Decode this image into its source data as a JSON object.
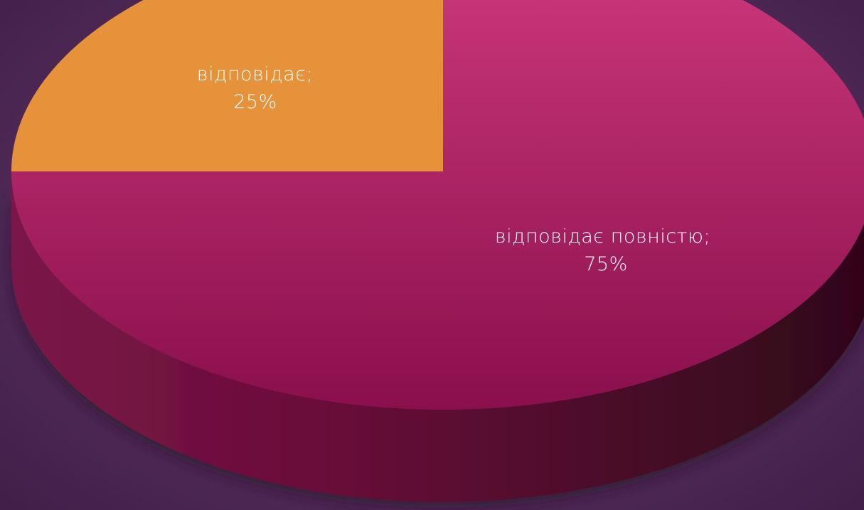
{
  "chart_data": {
    "type": "pie",
    "title": "",
    "slices": [
      {
        "label": "відповідає повністю",
        "value": 75,
        "display": "75%",
        "color": "#b8266a"
      },
      {
        "label": "відповідає",
        "value": 25,
        "display": "25%",
        "color": "#e6923a"
      }
    ],
    "legend": "none",
    "style": "3d"
  }
}
